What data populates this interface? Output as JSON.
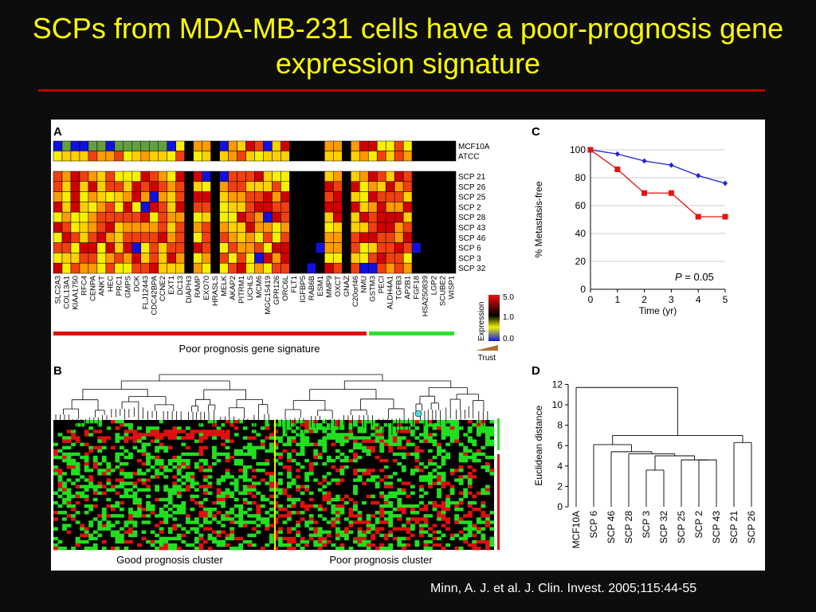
{
  "slide": {
    "title": "SCPs from MDA-MB-231 cells have a poor-prognosis gene expression signature",
    "citation": "Minn, A. J. et al. J. Clin. Invest. 2005;115:44-55",
    "title_color": "#ffff00",
    "rule_color": "#c00000"
  },
  "panel_a": {
    "label": "A",
    "control_rows": [
      "MCF10A",
      "ATCC"
    ],
    "scp_rows": [
      "SCP 21",
      "SCP 26",
      "SCP 25",
      "SCP 2",
      "SCP 28",
      "SCP 43",
      "SCP 46",
      "SCP 6",
      "SCP 3",
      "SCP 32"
    ],
    "genes": [
      "SLC2A3",
      "COL13A1",
      "KIAA1750",
      "RFC4",
      "CENPA",
      "ANKT",
      "HEC",
      "PRC1",
      "GMPS",
      "DCK",
      "FLJ12443",
      "CDC42BPA",
      "CCNE2",
      "EXT1",
      "DC13",
      "DIAPH3",
      "RAMP",
      "EXO70",
      "HRASLS",
      "MELK",
      "AKAP2",
      "PITRM1",
      "UCHL5",
      "MCM6",
      "MGC15419",
      "GPR126",
      "ORC6L",
      "FLT1",
      "IGFBP5",
      "RAB6B",
      "ESM1",
      "MMP9",
      "OXCT",
      "GNAZ",
      "C20orf46",
      "NMU",
      "GSTM3",
      "PECI",
      "ALDH4A1",
      "TGFB3",
      "AP2B1",
      "FGF18",
      "HSA250839",
      "LGP2",
      "SCUBE2",
      "WISP1"
    ],
    "signature_label": "Poor prognosis gene signature",
    "legend_title": "Expression",
    "legend_ticks": [
      "5.0",
      "1.0",
      "0.0"
    ],
    "trust_label": "Trust"
  },
  "panel_b": {
    "label": "B",
    "good_label": "Good prognosis cluster",
    "poor_label": "Poor prognosis cluster"
  },
  "chart_data": [
    {
      "panel": "C",
      "type": "line",
      "x": [
        0,
        1,
        2,
        3,
        4,
        5
      ],
      "xlabel": "Time (yr)",
      "ylabel": "% Metastasis-free",
      "xlim": [
        0,
        5
      ],
      "ylim": [
        0,
        100
      ],
      "yticks": [
        0,
        20,
        40,
        60,
        80,
        100
      ],
      "grid": "horizontal",
      "series": [
        {
          "color": "#2020e0",
          "marker": "diamond",
          "values": [
            100,
            97,
            92,
            89,
            81.5,
            76
          ]
        },
        {
          "color": "#e81010",
          "marker": "square",
          "values": [
            100,
            86,
            69,
            69,
            52,
            52
          ]
        }
      ],
      "annotation": "P = 0.05"
    },
    {
      "panel": "D",
      "type": "dendrogram",
      "ylabel": "Euclidean distance",
      "ylim": [
        0,
        12
      ],
      "yticks": [
        0,
        2,
        4,
        6,
        8,
        10,
        12
      ],
      "leaves": [
        "MCF10A",
        "SCP 6",
        "SCP 46",
        "SCP 28",
        "SCP 3",
        "SCP 32",
        "SCP 25",
        "SCP 2",
        "SCP 43",
        "SCP 21",
        "SCP 26"
      ],
      "merges": [
        [
          4,
          5,
          3.6
        ],
        [
          7,
          8,
          4.6
        ],
        [
          6,
          12,
          4.6
        ],
        [
          11,
          13,
          5.0
        ],
        [
          3,
          14,
          5.2
        ],
        [
          2,
          15,
          5.4
        ],
        [
          1,
          16,
          6.1
        ],
        [
          9,
          10,
          6.3
        ],
        [
          17,
          18,
          7.0
        ],
        [
          0,
          19,
          11.7
        ]
      ]
    }
  ],
  "panel_c": {
    "label": "C",
    "p_italic": "P",
    "p_rest": " = 0.05"
  },
  "panel_d": {
    "label": "D"
  }
}
